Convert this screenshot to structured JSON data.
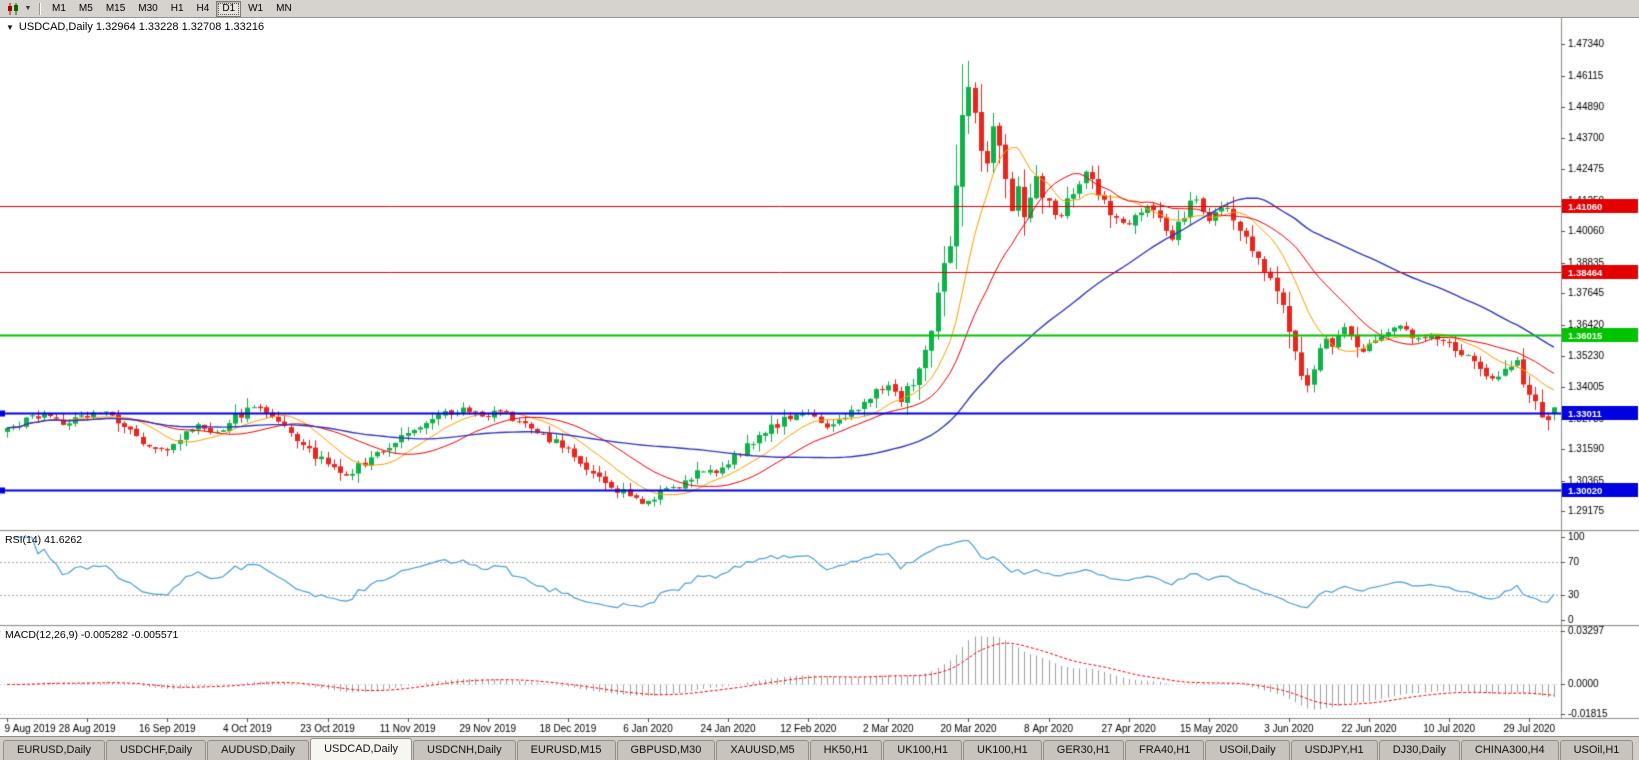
{
  "toolbar": {
    "chart_type_icon": "candlestick-chart",
    "dropdown_icon": "▼",
    "timeframes": [
      "M1",
      "M5",
      "M15",
      "M30",
      "H1",
      "H4",
      "D1",
      "W1",
      "MN"
    ],
    "active_timeframe": "D1"
  },
  "chart": {
    "shift_marker": "▼",
    "title_line": "USDCAD,Daily 1.32964 1.33228 1.32708 1.33216"
  },
  "indicators": {
    "rsi_label": "RSI(14) 41.6262",
    "macd_label": "MACD(12,26,9) -0.005282 -0.005571"
  },
  "chart_data": {
    "type": "candlestick",
    "symbol": "USDCAD",
    "timeframe": "Daily",
    "quote": {
      "open": 1.32964,
      "high": 1.33228,
      "low": 1.32708,
      "close": 1.33216
    },
    "num_candles": 252,
    "label_every": 13,
    "x_labels": [
      "9 Aug 2019",
      "28 Aug 2019",
      "16 Sep 2019",
      "4 Oct 2019",
      "23 Oct 2019",
      "11 Nov 2019",
      "29 Nov 2019",
      "18 Dec 2019",
      "6 Jan 2020",
      "24 Jan 2020",
      "12 Feb 2020",
      "2 Mar 2020",
      "20 Mar 2020",
      "8 Apr 2020",
      "27 Apr 2020",
      "15 May 2020",
      "3 Jun 2020",
      "22 Jun 2020",
      "10 Jul 2020",
      "29 Jul 2020"
    ],
    "price_range": [
      1.2845,
      1.482
    ],
    "price_axis_ticks": [
      1.4734,
      1.46115,
      1.4489,
      1.437,
      1.42475,
      1.4125,
      1.4006,
      1.38835,
      1.37645,
      1.3642,
      1.3523,
      1.34005,
      1.3278,
      1.3159,
      1.30365,
      1.29175
    ],
    "anchors": [
      [
        0,
        1.323
      ],
      [
        3,
        1.3268
      ],
      [
        6,
        1.3305
      ],
      [
        9,
        1.3262
      ],
      [
        13,
        1.3292
      ],
      [
        16,
        1.3312
      ],
      [
        19,
        1.3248
      ],
      [
        22,
        1.3185
      ],
      [
        25,
        1.3152
      ],
      [
        28,
        1.3205
      ],
      [
        31,
        1.3252
      ],
      [
        34,
        1.323
      ],
      [
        37,
        1.3282
      ],
      [
        40,
        1.3322
      ],
      [
        43,
        1.3296
      ],
      [
        46,
        1.3228
      ],
      [
        49,
        1.316
      ],
      [
        52,
        1.3098
      ],
      [
        55,
        1.3058
      ],
      [
        58,
        1.3105
      ],
      [
        61,
        1.316
      ],
      [
        65,
        1.3228
      ],
      [
        68,
        1.3268
      ],
      [
        71,
        1.33
      ],
      [
        74,
        1.3318
      ],
      [
        77,
        1.3292
      ],
      [
        80,
        1.3305
      ],
      [
        83,
        1.3262
      ],
      [
        86,
        1.3218
      ],
      [
        89,
        1.3185
      ],
      [
        91,
        1.3152
      ],
      [
        93,
        1.3115
      ],
      [
        95,
        1.3075
      ],
      [
        97,
        1.3035
      ],
      [
        99,
        1.3002
      ],
      [
        101,
        1.2978
      ],
      [
        103,
        1.2958
      ],
      [
        105,
        1.2972
      ],
      [
        107,
        1.2995
      ],
      [
        109,
        1.3022
      ],
      [
        111,
        1.3055
      ],
      [
        113,
        1.3082
      ],
      [
        115,
        1.3065
      ],
      [
        117,
        1.3108
      ],
      [
        119,
        1.3152
      ],
      [
        121,
        1.3195
      ],
      [
        123,
        1.3228
      ],
      [
        125,
        1.3258
      ],
      [
        127,
        1.3288
      ],
      [
        129,
        1.3302
      ],
      [
        131,
        1.3285
      ],
      [
        133,
        1.3252
      ],
      [
        135,
        1.3275
      ],
      [
        137,
        1.3305
      ],
      [
        139,
        1.3338
      ],
      [
        141,
        1.3385
      ],
      [
        143,
        1.3398
      ],
      [
        145,
        1.3342
      ],
      [
        147,
        1.3425
      ],
      [
        149,
        1.3558
      ],
      [
        151,
        1.3752
      ],
      [
        152,
        1.3868
      ],
      [
        153,
        1.3988
      ],
      [
        154,
        1.4145
      ],
      [
        155,
        1.4378
      ],
      [
        156,
        1.4585
      ],
      [
        157,
        1.447
      ],
      [
        158,
        1.4348
      ],
      [
        159,
        1.4252
      ],
      [
        160,
        1.4398
      ],
      [
        161,
        1.4295
      ],
      [
        162,
        1.4185
      ],
      [
        163,
        1.4092
      ],
      [
        164,
        1.4172
      ],
      [
        165,
        1.4052
      ],
      [
        166,
        1.4142
      ],
      [
        167,
        1.4215
      ],
      [
        168,
        1.4162
      ],
      [
        169,
        1.4105
      ],
      [
        171,
        1.4058
      ],
      [
        173,
        1.4165
      ],
      [
        175,
        1.4238
      ],
      [
        177,
        1.4155
      ],
      [
        179,
        1.4085
      ],
      [
        181,
        1.4028
      ],
      [
        183,
        1.4072
      ],
      [
        185,
        1.4115
      ],
      [
        187,
        1.4045
      ],
      [
        189,
        1.3985
      ],
      [
        191,
        1.4075
      ],
      [
        193,
        1.4135
      ],
      [
        195,
        1.4048
      ],
      [
        197,
        1.4105
      ],
      [
        199,
        1.4055
      ],
      [
        201,
        1.3975
      ],
      [
        203,
        1.3892
      ],
      [
        205,
        1.3825
      ],
      [
        207,
        1.3712
      ],
      [
        208,
        1.3648
      ],
      [
        209,
        1.3558
      ],
      [
        210,
        1.3475
      ],
      [
        211,
        1.3418
      ],
      [
        212,
        1.3462
      ],
      [
        213,
        1.3525
      ],
      [
        214,
        1.3582
      ],
      [
        215,
        1.3545
      ],
      [
        216,
        1.3602
      ],
      [
        217,
        1.3642
      ],
      [
        218,
        1.3608
      ],
      [
        219,
        1.3572
      ],
      [
        220,
        1.3545
      ],
      [
        221,
        1.3562
      ],
      [
        223,
        1.3602
      ],
      [
        225,
        1.3642
      ],
      [
        227,
        1.3618
      ],
      [
        229,
        1.3582
      ],
      [
        231,
        1.3612
      ],
      [
        233,
        1.3575
      ],
      [
        235,
        1.3545
      ],
      [
        237,
        1.3512
      ],
      [
        239,
        1.3468
      ],
      [
        241,
        1.3425
      ],
      [
        243,
        1.3465
      ],
      [
        245,
        1.3502
      ],
      [
        246,
        1.3438
      ],
      [
        247,
        1.3392
      ],
      [
        248,
        1.3352
      ],
      [
        249,
        1.3308
      ],
      [
        250,
        1.3262
      ],
      [
        251,
        1.3322
      ]
    ],
    "levels": [
      {
        "price": 1.4106,
        "label": "1.41060",
        "color": "#e40000",
        "width": 1,
        "marker": false
      },
      {
        "price": 1.38464,
        "label": "1.38464",
        "color": "#e40000",
        "width": 1,
        "marker": false
      },
      {
        "price": 1.36015,
        "label": "1.36015",
        "color": "#00c400",
        "width": 2,
        "marker": false
      },
      {
        "price": 1.33011,
        "label": "1.33011",
        "color": "#0000e0",
        "width": 2,
        "marker": true
      },
      {
        "price": 1.3002,
        "label": "1.30020",
        "color": "#0000e0",
        "width": 2,
        "marker": true
      }
    ],
    "moving_averages": [
      {
        "name": "MA10",
        "period": 10,
        "color": "#ff9d00"
      },
      {
        "name": "MA20",
        "period": 20,
        "color": "#f40000"
      },
      {
        "name": "MA50",
        "period": 50,
        "color": "#3038c0"
      }
    ],
    "rsi": {
      "period": 14,
      "current": 41.6262,
      "color": "#4aa0dc",
      "levels": [
        70,
        30
      ],
      "axis_marks": [
        {
          "v": 100,
          "label": "100"
        },
        {
          "v": 70,
          "label": "70"
        },
        {
          "v": 30,
          "label": "30"
        },
        {
          "v": 0,
          "label": "0"
        }
      ]
    },
    "macd": {
      "fast": 12,
      "slow": 26,
      "signal": 9,
      "current_macd": -0.005282,
      "current_signal": -0.005571,
      "range": [
        -0.0182,
        0.033
      ],
      "histogram_color": "#a0a0a0",
      "signal_color": "#ff0000",
      "axis_marks": [
        {
          "v": 0.03297,
          "label": "0.03297"
        },
        {
          "v": 0,
          "label": "0.0000"
        },
        {
          "v": -0.01815,
          "label": "-0.01815"
        }
      ]
    },
    "colors": {
      "up": "#0fb14a",
      "down": "#e8261f",
      "background": "#ffffff",
      "axis_text": "#000000"
    }
  },
  "tabs": {
    "items": [
      "EURUSD,Daily",
      "USDCHF,Daily",
      "AUDUSD,Daily",
      "USDCAD,Daily",
      "USDCNH,Daily",
      "EURUSD,M15",
      "GBPUSD,M30",
      "XAUUSD,M5",
      "HK50,H1",
      "UK100,H1",
      "UK100,H1",
      "GER30,H1",
      "FRA40,H1",
      "USOil,Daily",
      "USDJPY,H1",
      "DJ30,Daily",
      "CHINA300,H4",
      "USOil,H1"
    ],
    "active_index": 3
  }
}
